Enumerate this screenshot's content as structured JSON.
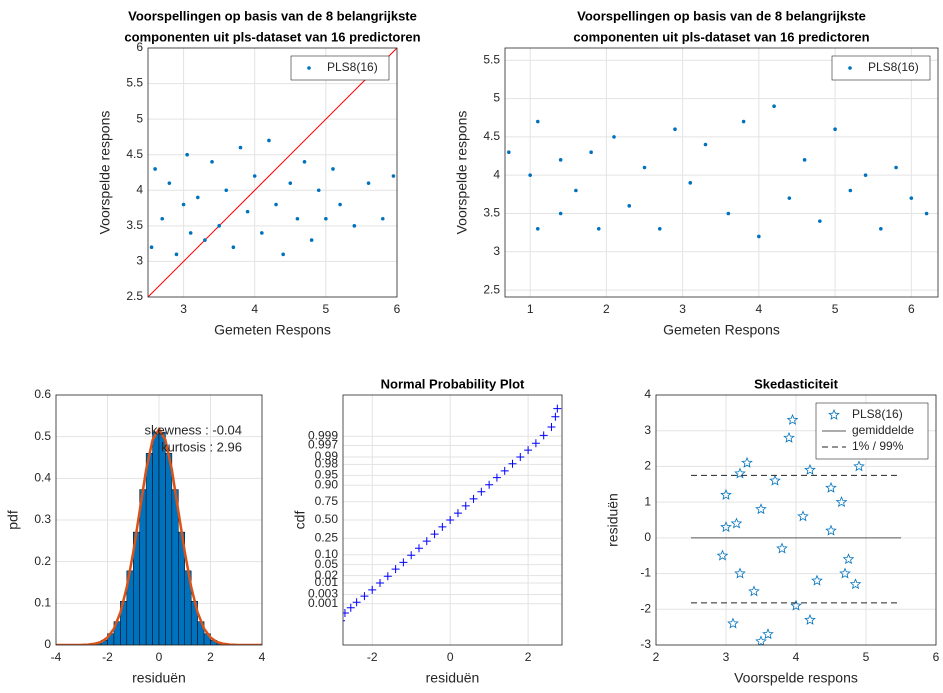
{
  "chart_data": [
    {
      "type": "scatter",
      "title": [
        "Voorspellingen op basis van de 8 belangrijkste",
        "componenten uit pls-dataset van 16 predictoren"
      ],
      "xlabel": "Gemeten Respons",
      "ylabel": "Voorspelde respons",
      "xlim": [
        2.5,
        6
      ],
      "ylim": [
        2.5,
        6
      ],
      "xticks": [
        3,
        4,
        5,
        6
      ],
      "yticks": [
        2.5,
        3,
        3.5,
        4,
        4.5,
        5,
        5.5,
        6
      ],
      "grid": true,
      "legend": "northeast",
      "identity_line_color": "#ff0000",
      "series": [
        {
          "name": "PLS8(16)",
          "color": "#0072bd",
          "marker": "dot",
          "x": [
            2.55,
            2.6,
            2.7,
            2.8,
            2.9,
            3.0,
            3.05,
            3.1,
            3.2,
            3.3,
            3.4,
            3.5,
            3.6,
            3.7,
            3.8,
            3.9,
            4.0,
            4.1,
            4.2,
            4.3,
            4.4,
            4.5,
            4.6,
            4.7,
            4.8,
            4.9,
            5.0,
            5.1,
            5.2,
            5.4,
            5.6,
            5.8,
            5.95
          ],
          "values": [
            3.2,
            4.3,
            3.6,
            4.1,
            3.1,
            3.8,
            4.5,
            3.4,
            3.9,
            3.3,
            4.4,
            3.5,
            4.0,
            3.2,
            4.6,
            3.7,
            4.2,
            3.4,
            4.7,
            3.8,
            3.1,
            4.1,
            3.6,
            4.4,
            3.3,
            4.0,
            3.6,
            4.3,
            3.8,
            3.5,
            4.1,
            3.6,
            4.2
          ]
        }
      ]
    },
    {
      "type": "scatter",
      "title": [
        "Voorspellingen op basis van de 8 belangrijkste",
        "componenten uit pls-dataset van 16 predictoren"
      ],
      "xlabel": "Gemeten Respons",
      "ylabel": "Voorspelde respons",
      "xlim": [
        0.67,
        6.35
      ],
      "ylim": [
        2.41,
        5.66
      ],
      "xticks": [
        1,
        2,
        3,
        4,
        5,
        6
      ],
      "yticks": [
        2.5,
        3,
        3.5,
        4,
        4.5,
        5,
        5.5
      ],
      "grid": true,
      "legend": "northeast",
      "series": [
        {
          "name": "PLS8(16)",
          "color": "#0072bd",
          "marker": "dot",
          "x": [
            0.72,
            1.0,
            1.1,
            1.1,
            1.4,
            1.4,
            1.6,
            1.8,
            1.9,
            2.1,
            2.3,
            2.5,
            2.7,
            2.9,
            3.1,
            3.3,
            3.6,
            3.8,
            4.0,
            4.2,
            4.4,
            4.6,
            4.8,
            5.0,
            5.2,
            5.4,
            5.6,
            5.8,
            6.0,
            6.2
          ],
          "values": [
            4.3,
            4.0,
            4.7,
            3.3,
            4.2,
            3.5,
            3.8,
            4.3,
            3.3,
            4.5,
            3.6,
            4.1,
            3.3,
            4.6,
            3.9,
            4.4,
            3.5,
            4.7,
            3.2,
            4.9,
            3.7,
            4.2,
            3.4,
            4.6,
            3.8,
            4.0,
            3.3,
            4.1,
            3.7,
            3.5
          ]
        }
      ]
    },
    {
      "type": "histogram",
      "xlabel": "residuën",
      "ylabel": "pdf",
      "xlim": [
        -4,
        4
      ],
      "ylim": [
        0,
        0.6
      ],
      "xticks": [
        -4,
        -2,
        0,
        2,
        4
      ],
      "yticks": [
        0,
        0.1,
        0.2,
        0.3,
        0.4,
        0.5,
        0.6
      ],
      "grid": true,
      "color": "#0072bd",
      "bins": [
        -3,
        -2.75,
        -2.5,
        -2.25,
        -2,
        -1.75,
        -1.5,
        -1.25,
        -1,
        -0.75,
        -0.5,
        -0.25,
        0,
        0.25,
        0.5,
        0.75,
        1,
        1.25,
        1.5,
        1.75,
        2,
        2.25,
        2.5,
        2.75,
        3
      ],
      "values": [
        0.0005,
        0.0016,
        0.0044,
        0.0115,
        0.027,
        0.056,
        0.105,
        0.178,
        0.271,
        0.373,
        0.46,
        0.511,
        0.511,
        0.46,
        0.373,
        0.271,
        0.178,
        0.105,
        0.056,
        0.027,
        0.0115,
        0.0044,
        0.0016,
        0.0005
      ],
      "fit": {
        "color": "#d95319",
        "x": [
          -4,
          -3.75,
          -3.5,
          -3.25,
          -3,
          -2.75,
          -2.5,
          -2.25,
          -2,
          -1.75,
          -1.5,
          -1.25,
          -1,
          -0.75,
          -0.5,
          -0.25,
          0,
          0.25,
          0.5,
          0.75,
          1,
          1.25,
          1.5,
          1.75,
          2,
          2.25,
          2.5,
          2.75,
          3,
          3.25,
          3.5,
          3.75,
          4
        ],
        "values": [
          0,
          0,
          0,
          0.0001,
          0.0003,
          0.0009,
          0.003,
          0.0072,
          0.018,
          0.0391,
          0.078,
          0.139,
          0.223,
          0.322,
          0.42,
          0.492,
          0.518,
          0.492,
          0.42,
          0.322,
          0.223,
          0.139,
          0.078,
          0.0391,
          0.018,
          0.0072,
          0.003,
          0.0009,
          0.0003,
          0.0001,
          0,
          0,
          0
        ]
      },
      "annotations": [
        "skewness : -0.04",
        "kurtosis : 2.96"
      ]
    },
    {
      "type": "scatter",
      "title": [
        "Normal Probability Plot"
      ],
      "xlabel": "residuën",
      "ylabel": "cdf",
      "xlim": [
        -2.75,
        2.87
      ],
      "ylim": [
        2e-06,
        0.999998
      ],
      "yscale": "probit",
      "xticks": [
        -2,
        0,
        2
      ],
      "yticks": [
        0.001,
        0.003,
        0.01,
        0.02,
        0.05,
        {
          "value": 0.1,
          "label": "0.10"
        },
        0.25,
        {
          "value": 0.5,
          "label": "0.50"
        },
        0.75,
        {
          "value": 0.9,
          "label": "0.90"
        },
        0.95,
        0.98,
        0.99,
        0.997,
        0.999
      ],
      "grid": true,
      "series": [
        {
          "name": "residuën",
          "color": "#0000ff",
          "marker": "plus",
          "x": [
            -2.9,
            -2.8,
            -2.7,
            -2.55,
            -2.4,
            -2.2,
            -2.0,
            -1.8,
            -1.6,
            -1.4,
            -1.2,
            -1.0,
            -0.8,
            -0.6,
            -0.4,
            -0.2,
            0,
            0.2,
            0.4,
            0.6,
            0.8,
            1.0,
            1.2,
            1.4,
            1.6,
            1.8,
            2.0,
            2.2,
            2.4,
            2.6,
            2.7,
            2.75
          ],
          "values": [
            5e-05,
            0.0001,
            0.0003,
            0.0006,
            0.0012,
            0.0025,
            0.005,
            0.01,
            0.019,
            0.035,
            0.059,
            0.097,
            0.149,
            0.218,
            0.301,
            0.399,
            0.5,
            0.601,
            0.699,
            0.782,
            0.851,
            0.903,
            0.941,
            0.965,
            0.981,
            0.99,
            0.995,
            0.9977,
            0.9991,
            0.9997,
            0.99993,
            0.99998
          ]
        }
      ]
    },
    {
      "type": "scatter",
      "title": [
        "Skedasticiteit"
      ],
      "xlabel": "Voorspelde respons",
      "ylabel": "residuën",
      "xlim": [
        2,
        6
      ],
      "ylim": [
        -3,
        4
      ],
      "xticks": [
        2,
        3,
        4,
        5,
        6
      ],
      "yticks": [
        -3,
        -2,
        -1,
        0,
        1,
        2,
        3,
        4
      ],
      "grid": true,
      "legend": "northeast",
      "series": [
        {
          "name": "PLS8(16)",
          "color": "#0072bd",
          "marker": "star",
          "x": [
            2.95,
            3.0,
            3.1,
            3.15,
            3.2,
            3.3,
            3.4,
            3.5,
            3.6,
            3.7,
            3.8,
            3.9,
            3.95,
            4.0,
            4.1,
            4.2,
            4.3,
            4.4,
            4.5,
            4.6,
            4.65,
            4.7,
            4.75,
            4.85,
            4.9,
            3.0,
            3.2,
            3.5,
            4.2,
            4.5
          ],
          "values": [
            -0.5,
            1.2,
            -2.4,
            0.4,
            -1.0,
            2.1,
            -1.5,
            0.8,
            -2.7,
            1.6,
            -0.3,
            2.8,
            3.3,
            -1.9,
            0.6,
            1.9,
            -1.2,
            2.5,
            0.2,
            3.5,
            1.0,
            -1.0,
            -0.6,
            -1.3,
            2.0,
            0.3,
            1.8,
            -2.9,
            -2.3,
            1.4
          ]
        },
        {
          "name": "gemiddelde",
          "color": "#595959",
          "line": "solid",
          "x": [
            2.5,
            5.5
          ],
          "values": [
            0,
            0
          ]
        },
        {
          "name": "1% / 99%",
          "color": "#262626",
          "line": "dashed",
          "x": [
            2.5,
            5.5,
            null,
            2.5,
            5.5
          ],
          "values": [
            1.75,
            1.75,
            null,
            -1.82,
            -1.82
          ]
        }
      ]
    }
  ]
}
